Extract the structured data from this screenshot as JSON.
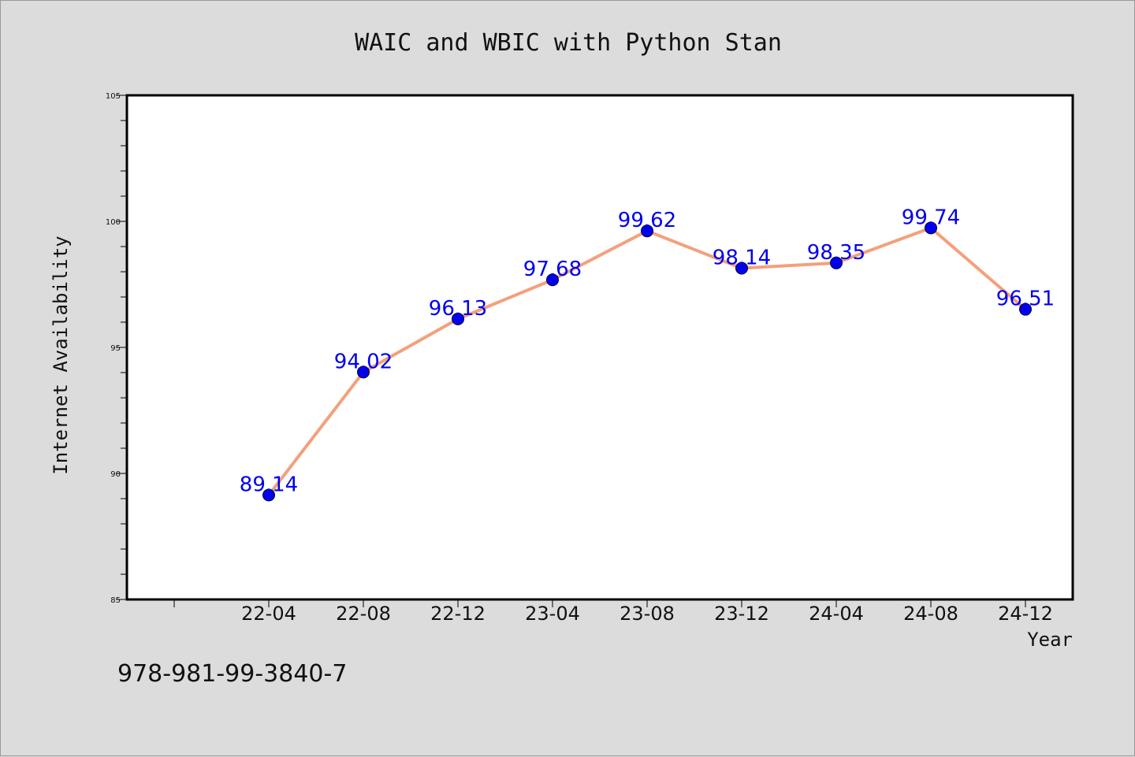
{
  "chart_data": {
    "type": "line",
    "title": "WAIC and WBIC with Python Stan",
    "xlabel": "Year",
    "ylabel": "Internet Availability",
    "categories": [
      "22-04",
      "22-08",
      "22-12",
      "23-04",
      "23-08",
      "23-12",
      "24-04",
      "24-08",
      "24-12"
    ],
    "values": [
      89.14,
      94.02,
      96.13,
      97.68,
      99.62,
      98.14,
      98.35,
      99.74,
      96.51
    ],
    "data_labels": [
      "89.14",
      "94.02",
      "96.13",
      "97.68",
      "99.62",
      "98.14",
      "98.35",
      "99.74",
      "96.51"
    ],
    "ylim": [
      85,
      105
    ],
    "yticks": [
      "85",
      "90",
      "95",
      "100",
      "105"
    ],
    "grid": false,
    "line_color": "#f4a07c",
    "marker_color": "#0000ee",
    "label_color": "#0000ee"
  },
  "footer": {
    "isbn": "978-981-99-3840-7"
  }
}
